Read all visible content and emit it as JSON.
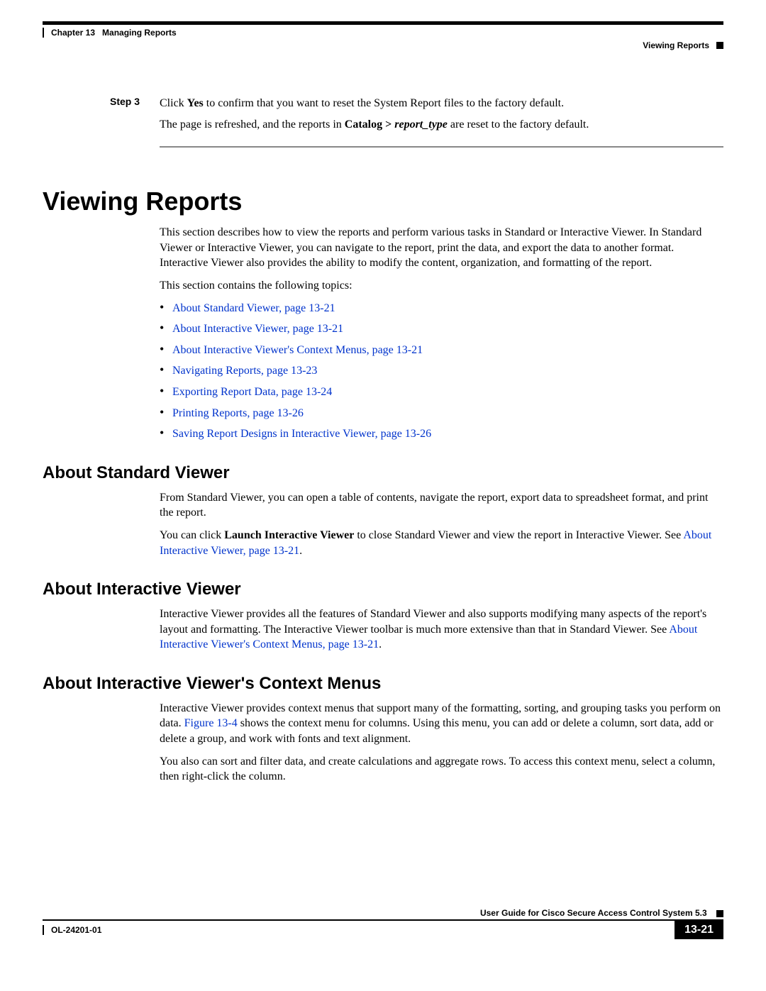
{
  "header": {
    "chapter_label": "Chapter 13",
    "chapter_title": "Managing Reports",
    "section": "Viewing Reports"
  },
  "step": {
    "label": "Step 3",
    "line1_pre": "Click ",
    "line1_bold": "Yes",
    "line1_post": " to confirm that you want to reset the System Report files to the factory default.",
    "line2_pre": "The page is refreshed, and the reports in ",
    "line2_bold": "Catalog > ",
    "line2_italic": "report_type",
    "line2_post": " are reset to the factory default."
  },
  "h1": "Viewing Reports",
  "intro_p1": "This section describes how to view the reports and perform various tasks in Standard or Interactive Viewer. In Standard Viewer or Interactive Viewer, you can navigate to the report, print the data, and export the data to another format. Interactive Viewer also provides the ability to modify the content, organization, and formatting of the report.",
  "intro_p2": "This section contains the following topics:",
  "topics": [
    "About Standard Viewer, page 13-21",
    "About Interactive Viewer, page 13-21",
    "About Interactive Viewer's Context Menus, page 13-21",
    "Navigating Reports, page 13-23",
    "Exporting Report Data, page 13-24",
    "Printing Reports, page 13-26",
    "Saving Report Designs in Interactive Viewer, page 13-26"
  ],
  "sec1": {
    "title": "About Standard Viewer",
    "p1": "From Standard Viewer, you can open a table of contents, navigate the report, export data to spreadsheet format, and print the report.",
    "p2_pre": "You can click ",
    "p2_bold": "Launch Interactive Viewer",
    "p2_mid": " to close Standard Viewer and view the report in Interactive Viewer. See ",
    "p2_link": "About Interactive Viewer, page 13-21",
    "p2_post": "."
  },
  "sec2": {
    "title": "About Interactive Viewer",
    "p1_pre": "Interactive Viewer provides all the features of Standard Viewer and also supports modifying many aspects of the report's layout and formatting. The Interactive Viewer toolbar is much more extensive than that in Standard Viewer. See ",
    "p1_link": "About Interactive Viewer's Context Menus, page 13-21",
    "p1_post": "."
  },
  "sec3": {
    "title": "About Interactive Viewer's Context Menus",
    "p1_pre": "Interactive Viewer provides context menus that support many of the formatting, sorting, and grouping tasks you perform on data. ",
    "p1_link": "Figure 13-4",
    "p1_post": " shows the context menu for columns. Using this menu, you can add or delete a column, sort data, add or delete a group, and work with fonts and text alignment.",
    "p2": "You also can sort and filter data, and create calculations and aggregate rows. To access this context menu, select a column, then right-click the column."
  },
  "footer": {
    "guide": "User Guide for Cisco Secure Access Control System 5.3",
    "doc": "OL-24201-01",
    "page": "13-21"
  }
}
